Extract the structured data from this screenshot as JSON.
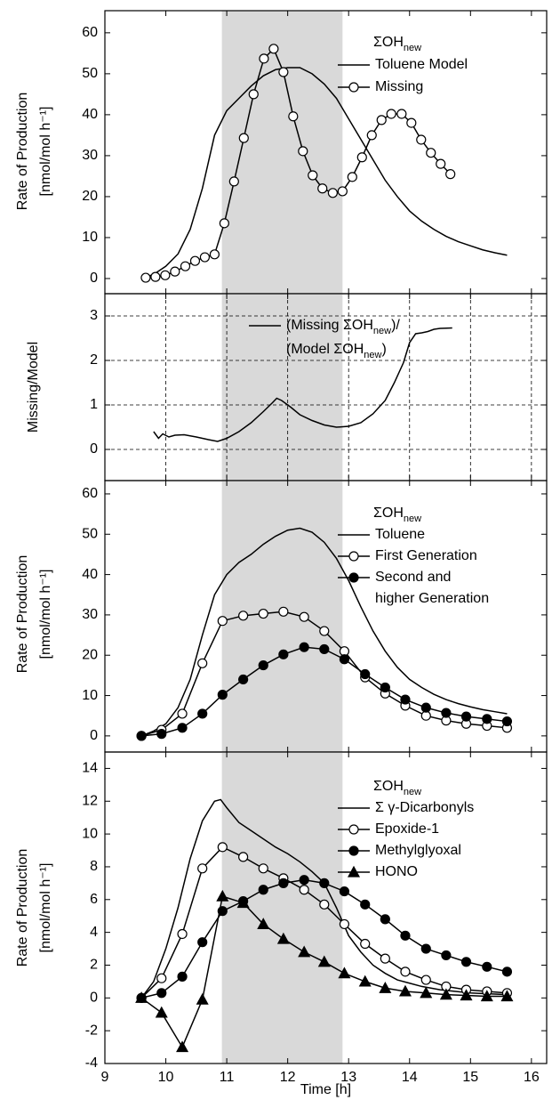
{
  "chart_data": [
    {
      "type": "line",
      "ylabel": "Rate of Production",
      "ylabel2": "[nmol/mol h⁻¹]",
      "xlim": [
        9,
        16.25
      ],
      "xticks": [
        9,
        10,
        11,
        12,
        13,
        14,
        15,
        16
      ],
      "ylim": [
        -3.7,
        65.4
      ],
      "yticks": [
        0,
        10,
        20,
        30,
        40,
        50,
        60
      ],
      "highlight_x": [
        10.92,
        12.9
      ],
      "grid": false,
      "legend_title": [
        "ΣOH",
        "new"
      ],
      "series": [
        {
          "name": "Toluene Model",
          "color": "#000000",
          "marker": "none",
          "x": [
            9.6,
            9.8,
            10,
            10.2,
            10.4,
            10.6,
            10.8,
            11,
            11.2,
            11.4,
            11.6,
            11.8,
            12,
            12.2,
            12.4,
            12.6,
            12.8,
            13,
            13.2,
            13.4,
            13.6,
            13.8,
            14,
            14.2,
            14.4,
            14.6,
            14.8,
            15,
            15.2,
            15.4,
            15.6
          ],
          "values": [
            0,
            1,
            3,
            6,
            12,
            22,
            35,
            41,
            44,
            47,
            49.5,
            51,
            51.5,
            51.5,
            50,
            47.5,
            44,
            39,
            34,
            29,
            24,
            20,
            16.5,
            14,
            12,
            10.3,
            9,
            8,
            7,
            6.3,
            5.7
          ]
        },
        {
          "name": "Missing",
          "color": "#000000",
          "marker": "open-circle",
          "x": [
            9.67,
            9.83,
            9.99,
            10.15,
            10.32,
            10.48,
            10.64,
            10.8,
            10.96,
            11.12,
            11.28,
            11.44,
            11.61,
            11.77,
            11.93,
            12.09,
            12.25,
            12.41,
            12.57,
            12.74,
            12.9,
            13.06,
            13.22,
            13.38,
            13.54,
            13.7,
            13.87,
            14.03,
            14.19,
            14.35,
            14.51,
            14.67
          ],
          "values": [
            0.2,
            0.4,
            0.8,
            1.7,
            3,
            4.3,
            5.2,
            5.9,
            13.5,
            23.7,
            34.3,
            45,
            53.7,
            56.1,
            50.4,
            39.6,
            31.1,
            25.2,
            22,
            20.9,
            21.3,
            24.8,
            29.6,
            35,
            38.7,
            40.2,
            40.2,
            38,
            33.9,
            30.7,
            28,
            25.5
          ]
        }
      ]
    },
    {
      "type": "line",
      "ylabel": "Missing/Model",
      "xlim": [
        9,
        16.25
      ],
      "xticks": [
        9,
        10,
        11,
        12,
        13,
        14,
        15,
        16
      ],
      "ylim": [
        -0.7,
        3.5
      ],
      "yticks": [
        0,
        1,
        2,
        3
      ],
      "highlight_x": [
        10.92,
        12.9
      ],
      "grid": true,
      "series": [
        {
          "name": [
            [
              "(Missing ΣOH",
              "new",
              ")/"
            ],
            [
              "(Model ΣOH",
              "new",
              ")"
            ]
          ],
          "color": "#000000",
          "marker": "none",
          "x": [
            9.8,
            9.88,
            9.95,
            10.05,
            10.15,
            10.3,
            10.5,
            10.7,
            10.85,
            11,
            11.2,
            11.4,
            11.6,
            11.75,
            11.82,
            11.9,
            12.05,
            12.2,
            12.4,
            12.6,
            12.8,
            13,
            13.2,
            13.4,
            13.6,
            13.75,
            13.9,
            14,
            14.1,
            14.2,
            14.3,
            14.4,
            14.5,
            14.7
          ],
          "values": [
            0.4,
            0.25,
            0.35,
            0.28,
            0.32,
            0.33,
            0.28,
            0.22,
            0.18,
            0.25,
            0.4,
            0.6,
            0.85,
            1.05,
            1.15,
            1.1,
            0.95,
            0.78,
            0.65,
            0.55,
            0.5,
            0.52,
            0.6,
            0.8,
            1.1,
            1.5,
            1.95,
            2.4,
            2.6,
            2.62,
            2.65,
            2.7,
            2.72,
            2.73
          ]
        }
      ]
    },
    {
      "type": "line",
      "ylabel": "Rate of Production",
      "ylabel2": "[nmol/mol h⁻¹]",
      "xlim": [
        9,
        16.25
      ],
      "xticks": [
        9,
        10,
        11,
        12,
        13,
        14,
        15,
        16
      ],
      "ylim": [
        -4,
        63.3
      ],
      "yticks": [
        0,
        10,
        20,
        30,
        40,
        50,
        60
      ],
      "highlight_x": [
        10.92,
        12.9
      ],
      "grid": false,
      "legend_title": [
        "ΣOH",
        "new"
      ],
      "series": [
        {
          "name": "Toluene",
          "color": "#000000",
          "marker": "none",
          "x": [
            9.6,
            9.8,
            10,
            10.2,
            10.4,
            10.6,
            10.8,
            11,
            11.2,
            11.4,
            11.6,
            11.8,
            12,
            12.2,
            12.4,
            12.6,
            12.8,
            13,
            13.2,
            13.4,
            13.6,
            13.8,
            14,
            14.2,
            14.4,
            14.6,
            14.8,
            15,
            15.2,
            15.4,
            15.6
          ],
          "values": [
            0,
            1.2,
            3,
            7,
            14,
            25,
            35,
            40,
            43,
            45,
            47.5,
            49.5,
            51,
            51.5,
            50.5,
            48,
            44,
            38.5,
            32,
            26,
            21,
            17,
            14,
            12,
            10.3,
            9,
            8,
            7.2,
            6.5,
            6,
            5.5
          ]
        },
        {
          "name": "First Generation",
          "color": "#000000",
          "marker": "open-circle",
          "x": [
            9.6,
            9.93,
            10.27,
            10.6,
            10.93,
            11.27,
            11.6,
            11.93,
            12.27,
            12.6,
            12.93,
            13.27,
            13.6,
            13.93,
            14.27,
            14.6,
            14.93,
            15.27,
            15.6
          ],
          "values": [
            0,
            1.5,
            5.5,
            18,
            28.5,
            29.8,
            30.3,
            30.8,
            29.5,
            26,
            21,
            14.5,
            10.5,
            7.5,
            5,
            3.8,
            3,
            2.5,
            2
          ]
        },
        {
          "name": [
            [
              "Second and"
            ],
            [
              "higher Generation"
            ]
          ],
          "color": "#000000",
          "marker": "circle",
          "x": [
            9.6,
            9.93,
            10.27,
            10.6,
            10.93,
            11.27,
            11.6,
            11.93,
            12.27,
            12.6,
            12.93,
            13.27,
            13.6,
            13.93,
            14.27,
            14.6,
            14.93,
            15.27,
            15.6
          ],
          "values": [
            0,
            0.5,
            2,
            5.5,
            10.2,
            14,
            17.5,
            20.2,
            22,
            21.5,
            19,
            15.3,
            12,
            9,
            7,
            5.7,
            4.8,
            4.2,
            3.6
          ]
        }
      ]
    },
    {
      "type": "line",
      "ylabel": "Rate of Production",
      "ylabel2": "[nmol/mol h⁻¹]",
      "xlabel": "Time [h]",
      "xlim": [
        9,
        16.25
      ],
      "xticks": [
        9,
        10,
        11,
        12,
        13,
        14,
        15,
        16
      ],
      "ylim": [
        -4,
        15
      ],
      "yticks": [
        -4,
        -2,
        0,
        2,
        4,
        6,
        8,
        10,
        12,
        14
      ],
      "highlight_x": [
        10.92,
        12.9
      ],
      "grid": false,
      "legend_title": [
        "ΣOH",
        "new"
      ],
      "series": [
        {
          "name": "Σ γ-Dicarbonyls",
          "color": "#000000",
          "marker": "none",
          "x": [
            9.6,
            9.8,
            10,
            10.2,
            10.4,
            10.6,
            10.8,
            10.9,
            11,
            11.2,
            11.4,
            11.6,
            11.8,
            12,
            12.2,
            12.4,
            12.6,
            12.8,
            13,
            13.2,
            13.4,
            13.6,
            13.8,
            14,
            14.2,
            14.5,
            15,
            15.6
          ],
          "values": [
            0,
            1,
            3,
            5.5,
            8.5,
            10.8,
            12,
            12.1,
            11.6,
            10.7,
            10.2,
            9.7,
            9.2,
            8.8,
            8.3,
            7.7,
            7,
            5.5,
            3.8,
            2.8,
            2,
            1.5,
            1.1,
            0.9,
            0.7,
            0.5,
            0.3,
            0.2
          ]
        },
        {
          "name": "Epoxide-1",
          "color": "#000000",
          "marker": "open-circle",
          "x": [
            9.6,
            9.93,
            10.27,
            10.6,
            10.93,
            11.27,
            11.6,
            11.93,
            12.27,
            12.6,
            12.93,
            13.27,
            13.6,
            13.93,
            14.27,
            14.6,
            14.93,
            15.27,
            15.6
          ],
          "values": [
            0,
            1.2,
            3.9,
            7.9,
            9.2,
            8.6,
            7.9,
            7.3,
            6.6,
            5.7,
            4.5,
            3.3,
            2.4,
            1.6,
            1.1,
            0.7,
            0.5,
            0.4,
            0.3
          ]
        },
        {
          "name": "Methylglyoxal",
          "color": "#000000",
          "marker": "circle",
          "x": [
            9.6,
            9.93,
            10.27,
            10.6,
            10.93,
            11.27,
            11.6,
            11.93,
            12.27,
            12.6,
            12.93,
            13.27,
            13.6,
            13.93,
            14.27,
            14.6,
            14.93,
            15.27,
            15.6
          ],
          "values": [
            0,
            0.3,
            1.3,
            3.4,
            5.3,
            5.9,
            6.6,
            7,
            7.2,
            7,
            6.5,
            5.7,
            4.8,
            3.8,
            3,
            2.6,
            2.2,
            1.9,
            1.6
          ]
        },
        {
          "name": "HONO",
          "color": "#000000",
          "marker": "triangle",
          "x": [
            9.6,
            9.93,
            10.27,
            10.6,
            10.93,
            11.27,
            11.6,
            11.93,
            12.27,
            12.6,
            12.93,
            13.27,
            13.6,
            13.93,
            14.27,
            14.6,
            14.93,
            15.27,
            15.6
          ],
          "values": [
            0,
            -0.9,
            -3,
            -0.1,
            6.2,
            5.8,
            4.5,
            3.6,
            2.8,
            2.2,
            1.5,
            1,
            0.6,
            0.4,
            0.3,
            0.2,
            0.15,
            0.1,
            0.1
          ]
        }
      ]
    }
  ]
}
